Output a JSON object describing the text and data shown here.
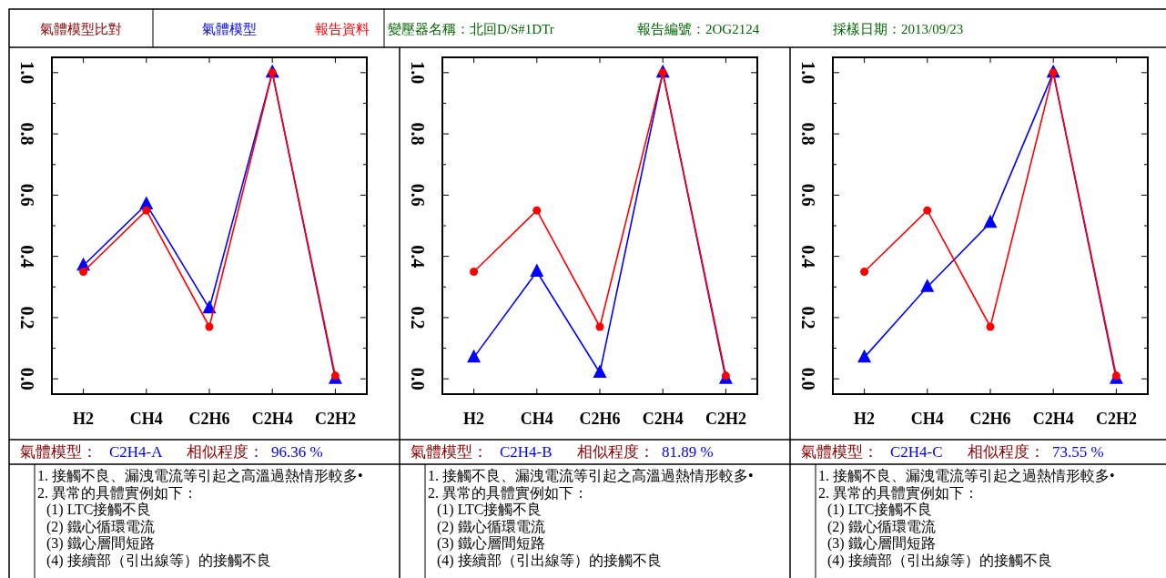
{
  "chart_data": [
    {
      "type": "line",
      "title": "氣體模型比對",
      "legend": "top",
      "categories": [
        "H2",
        "CH4",
        "C2H6",
        "C2H4",
        "C2H2"
      ],
      "series": [
        {
          "name": "氣體模型",
          "color": "#0000ff",
          "marker": "triangle",
          "values": [
            0.37,
            0.57,
            0.23,
            1.0,
            0.0
          ]
        },
        {
          "name": "報告資料",
          "color": "#ff0000",
          "marker": "circle",
          "values": [
            0.35,
            0.55,
            0.17,
            1.0,
            0.01
          ]
        }
      ],
      "ylim": [
        -0.05,
        1.05
      ],
      "yticks": [
        {
          "value": 0,
          "label": "0.0"
        },
        {
          "value": 0.1,
          "label": null
        },
        0.2,
        {
          "value": 0.3,
          "label": null
        },
        0.4,
        {
          "value": 0.5,
          "label": null
        },
        0.6,
        {
          "value": 0.7,
          "label": null
        },
        0.8,
        {
          "value": 0.9,
          "label": null
        },
        {
          "value": 1,
          "label": "1.0"
        }
      ],
      "annotations": [
        "變壓器名稱：北回D/S#1DTr",
        "報告編號：2OG2124",
        "採樣日期：2013/09/23",
        "氣體模型：",
        "C2H4-A",
        "相似程度：",
        "96.36 %",
        "1. 接觸不良、漏洩電流等引起之高溫過熱情形較多•",
        "2. 異常的具體實例如下：",
        "(1) LTC接觸不良",
        "(2) 鐵心循環電流",
        "(3) 鐵心層間短路",
        "(4) 接續部（引出線等）的接觸不良"
      ]
    },
    {
      "type": "line",
      "categories": [
        "H2",
        "CH4",
        "C2H6",
        "C2H4",
        "C2H2"
      ],
      "series": [
        {
          "color": "#0000ff",
          "marker": "triangle",
          "values": [
            0.07,
            0.35,
            0.02,
            1.0,
            0.0
          ]
        },
        {
          "color": "#ff0000",
          "marker": "circle",
          "values": [
            0.35,
            0.55,
            0.17,
            1.0,
            0.01
          ]
        }
      ],
      "ylim": [
        -0.05,
        1.05
      ],
      "yticks": [
        {
          "value": 0,
          "label": "0.0"
        },
        {
          "value": 0.1,
          "label": null
        },
        0.2,
        {
          "value": 0.3,
          "label": null
        },
        0.4,
        {
          "value": 0.5,
          "label": null
        },
        0.6,
        {
          "value": 0.7,
          "label": null
        },
        0.8,
        {
          "value": 0.9,
          "label": null
        },
        {
          "value": 1,
          "label": "1.0"
        }
      ],
      "annotations": [
        "氣體模型：",
        "C2H4-B",
        "相似程度：",
        "81.89 %",
        "1. 接觸不良、漏洩電流等引起之高溫過熱情形較多•",
        "2. 異常的具體實例如下：",
        "(1) LTC接觸不良",
        "(2) 鐵心循環電流",
        "(3) 鐵心層間短路",
        "(4) 接續部（引出線等）的接觸不良"
      ]
    },
    {
      "type": "line",
      "categories": [
        "H2",
        "CH4",
        "C2H6",
        "C2H4",
        "C2H2"
      ],
      "series": [
        {
          "color": "#0000ff",
          "marker": "triangle",
          "values": [
            0.07,
            0.3,
            0.51,
            1.0,
            0.0
          ]
        },
        {
          "color": "#ff0000",
          "marker": "circle",
          "values": [
            0.35,
            0.55,
            0.17,
            1.0,
            0.01
          ]
        }
      ],
      "ylim": [
        -0.05,
        1.05
      ],
      "yticks": [
        {
          "value": 0,
          "label": "0.0"
        },
        {
          "value": 0.1,
          "label": null
        },
        0.2,
        {
          "value": 0.3,
          "label": null
        },
        0.4,
        {
          "value": 0.5,
          "label": null
        },
        0.6,
        {
          "value": 0.7,
          "label": null
        },
        0.8,
        {
          "value": 0.9,
          "label": null
        },
        {
          "value": 1,
          "label": "1.0"
        }
      ],
      "annotations": [
        "氣體模型：",
        "C2H4-C",
        "相似程度：",
        "73.55 %",
        "1. 接觸不良、漏洩電流等引起之過熱情形較多•",
        "2. 異常的具體實例如下：",
        "(1) LTC接觸不良",
        "(2) 鐵心循環電流",
        "(3) 鐵心層間短路",
        "(4) 接續部（引出線等）的接觸不良"
      ]
    }
  ]
}
